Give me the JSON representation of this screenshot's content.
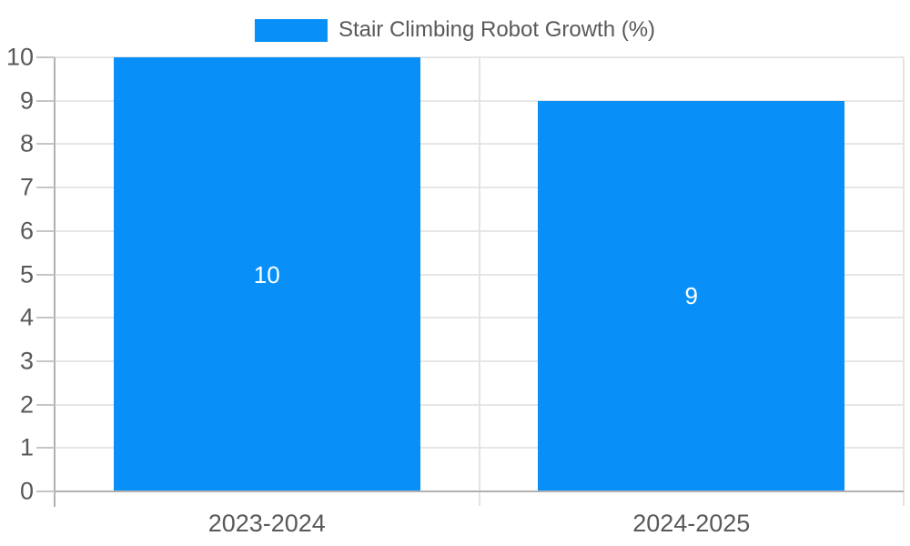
{
  "chart_data": {
    "type": "bar",
    "title": "",
    "xlabel": "",
    "ylabel": "",
    "categories": [
      "2023-2024",
      "2024-2025"
    ],
    "series": [
      {
        "name": "Stair Climbing Robot Growth (%)",
        "values": [
          10,
          9
        ]
      }
    ],
    "values": [
      10,
      9
    ],
    "bar_value_labels": [
      "10",
      "9"
    ],
    "yticks": [
      "0",
      "1",
      "2",
      "3",
      "4",
      "5",
      "6",
      "7",
      "8",
      "9",
      "10"
    ],
    "ylim": [
      0,
      10
    ],
    "grid": true,
    "legend_position": "top-center",
    "colors": {
      "bar": "#0990f8",
      "grid": "#e6e6e6",
      "axis": "#b1b1b1",
      "tick": "#c6c6c6",
      "text": "#595959",
      "bar_label_text": "#ffffff"
    }
  }
}
